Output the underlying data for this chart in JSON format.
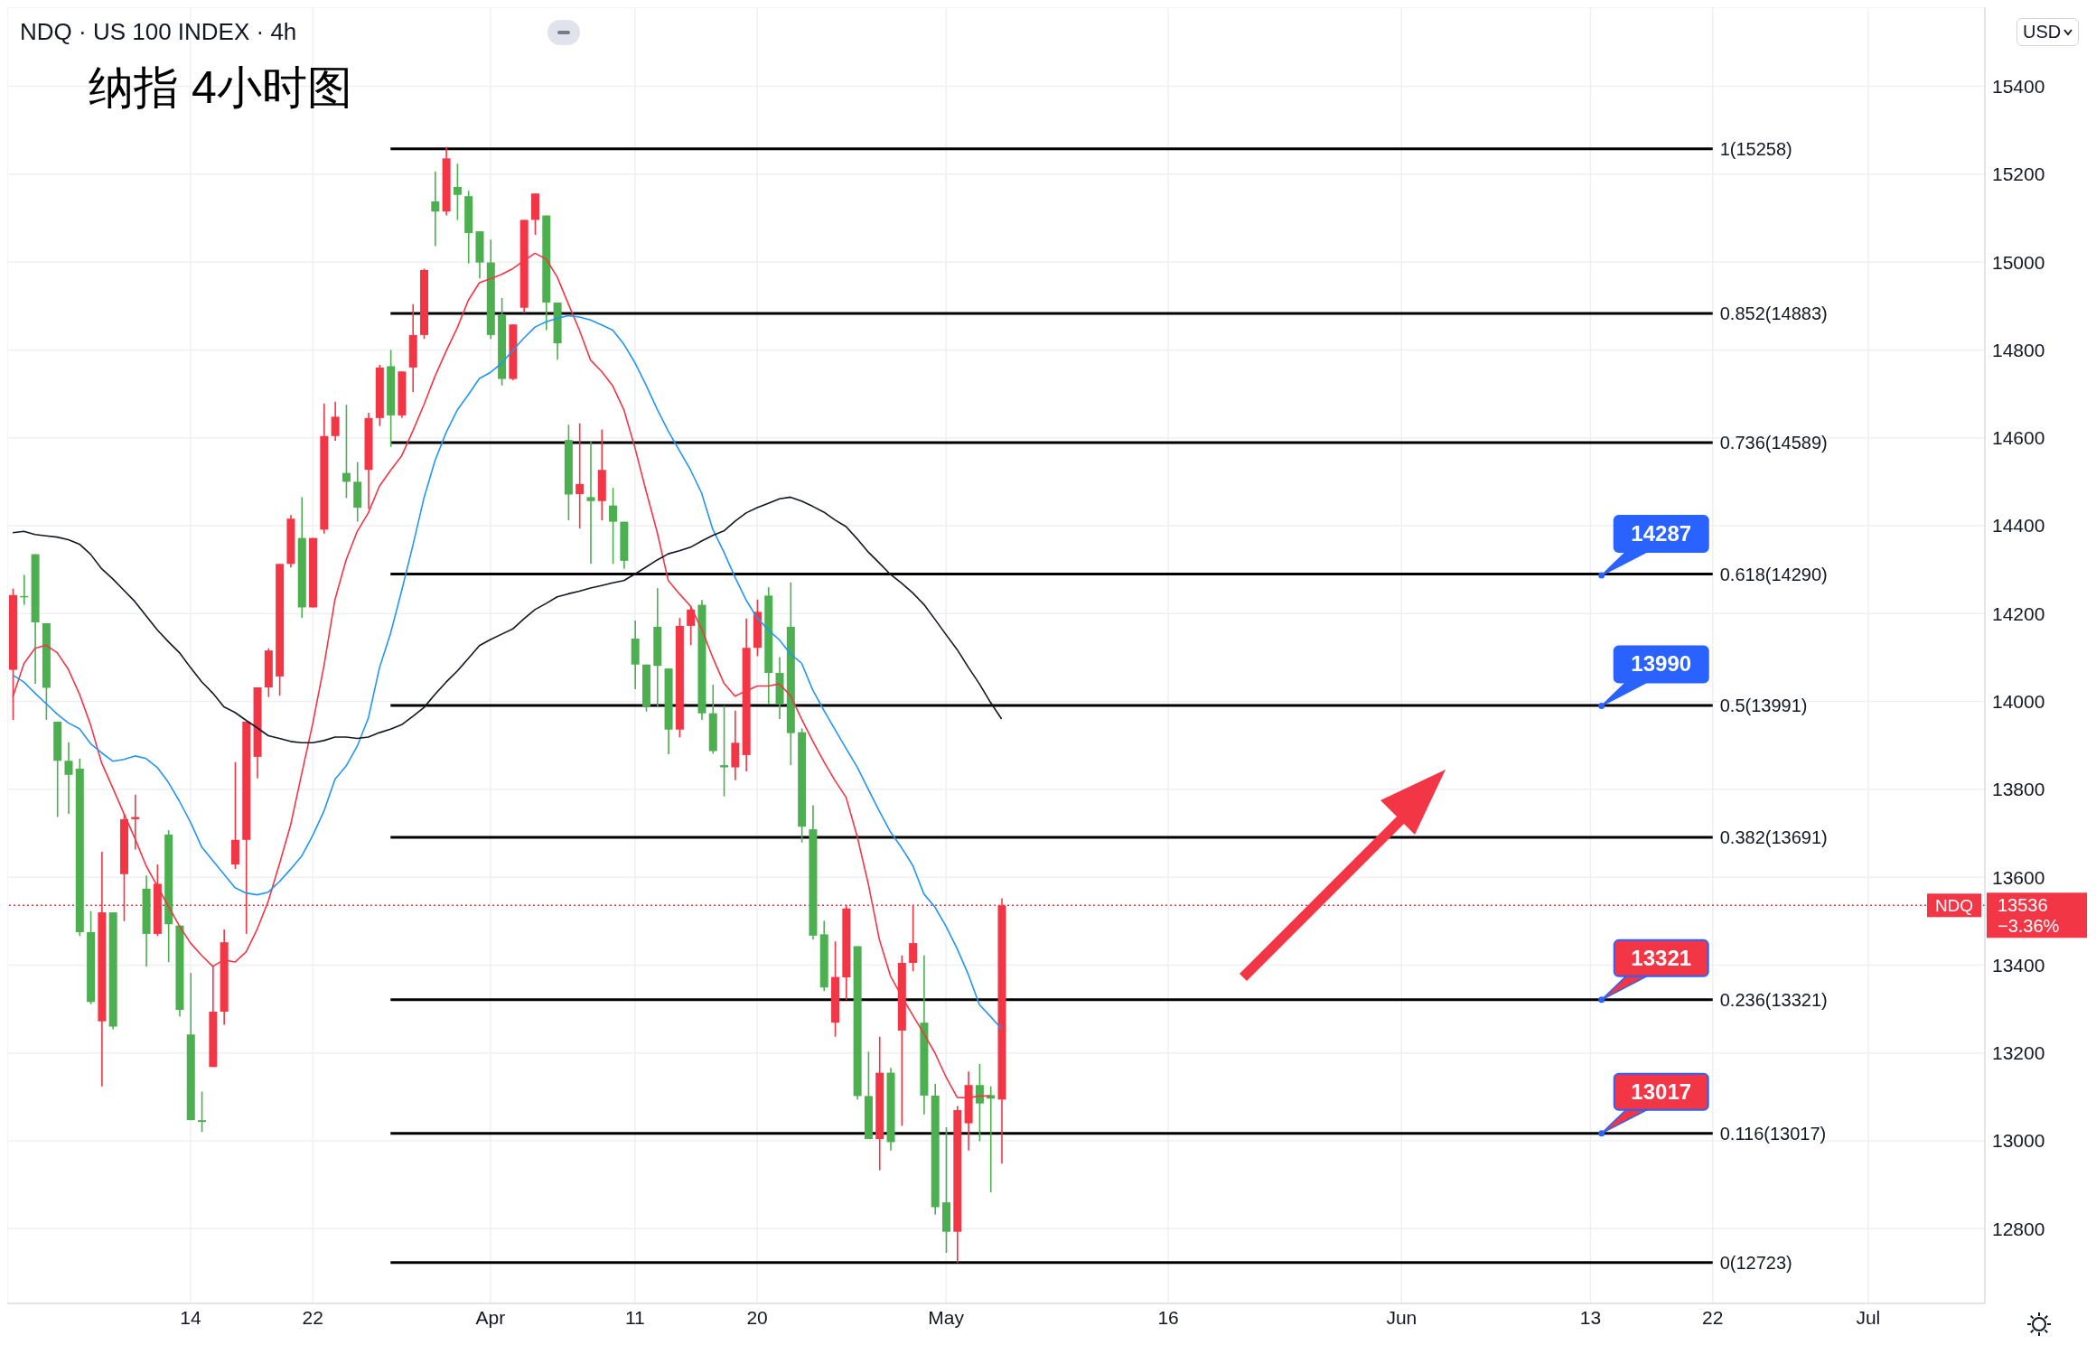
{
  "chart_data": {
    "type": "candlestick",
    "title": "纳指 4小时图",
    "subtitle": "NDQ · US 100 INDEX · 4h",
    "categories": [
      null,
      null,
      null,
      null,
      null,
      null,
      null,
      null,
      null,
      null,
      null,
      null,
      null,
      null,
      null,
      null,
      "14",
      null,
      null,
      null,
      null,
      null,
      null,
      null,
      null,
      null,
      null,
      "22",
      null,
      null,
      null,
      null,
      null,
      null,
      null,
      null,
      null,
      null,
      null,
      null,
      null,
      null,
      null,
      "Apr",
      null,
      null,
      null,
      null,
      null,
      null,
      null,
      null,
      null,
      null,
      null,
      null,
      "11",
      null,
      null,
      null,
      null,
      null,
      null,
      null,
      null,
      null,
      null,
      "20",
      null,
      null,
      null,
      null,
      null,
      null,
      null,
      null,
      null,
      null,
      null,
      null,
      null,
      null,
      null,
      null,
      "May",
      null,
      null,
      null,
      null,
      null,
      null,
      null,
      null,
      null,
      null,
      null,
      null,
      null,
      null,
      null,
      null,
      null,
      null,
      null,
      "16",
      null,
      null,
      null,
      null,
      null,
      null,
      null,
      null,
      null,
      null,
      null,
      null,
      null,
      null,
      null,
      null,
      null,
      null,
      null,
      null,
      "Jun",
      null,
      null,
      null,
      null,
      null,
      null,
      null,
      null,
      null,
      null,
      null,
      null,
      null,
      null,
      null,
      null,
      "13",
      null,
      null,
      null,
      null,
      null,
      null,
      null,
      null,
      null,
      null,
      "22",
      null,
      null,
      null,
      null,
      null,
      null,
      null,
      null,
      null,
      null,
      null,
      null,
      null,
      "Jul",
      null,
      null,
      null,
      null,
      null,
      null,
      null,
      null,
      null,
      null
    ],
    "ohlc": [
      [
        14242,
        14257,
        13958,
        14072
      ],
      [
        14238,
        14288,
        14220,
        14240
      ],
      [
        14180,
        14335,
        14040,
        14335
      ],
      [
        14031,
        14178,
        13958,
        14178
      ],
      [
        13865,
        13954,
        13737,
        13954
      ],
      [
        13833,
        13907,
        13744,
        13865
      ],
      [
        13475,
        13870,
        13466,
        13847
      ],
      [
        13316,
        13523,
        13311,
        13475
      ],
      [
        13520,
        13658,
        13124,
        13272
      ],
      [
        13260,
        13520,
        13254,
        13520
      ],
      [
        13732,
        13744,
        13500,
        13607
      ],
      [
        13737,
        13788,
        13663,
        13732
      ],
      [
        13471,
        13604,
        13397,
        13574
      ],
      [
        13585,
        13629,
        13466,
        13471
      ],
      [
        13493,
        13707,
        13407,
        13697
      ],
      [
        13298,
        13490,
        13283,
        13490
      ],
      [
        13047,
        13382,
        13047,
        13242
      ],
      [
        13043,
        13112,
        13020,
        13047
      ],
      [
        13294,
        13397,
        13168,
        13168
      ],
      [
        13452,
        13481,
        13264,
        13294
      ],
      [
        13685,
        13862,
        13619,
        13629
      ],
      [
        13954,
        13954,
        13471,
        13685
      ],
      [
        14032,
        14032,
        13825,
        13874
      ],
      [
        14116,
        14121,
        14010,
        14032
      ],
      [
        14313,
        14313,
        14013,
        14057
      ],
      [
        14416,
        14424,
        14305,
        14313
      ],
      [
        14214,
        14465,
        14190,
        14372
      ],
      [
        14372,
        14372,
        14214,
        14214
      ],
      [
        14604,
        14678,
        14382,
        14391
      ],
      [
        14648,
        14682,
        14593,
        14604
      ],
      [
        14500,
        14675,
        14463,
        14520
      ],
      [
        14441,
        14545,
        14409,
        14500
      ],
      [
        14645,
        14657,
        14438,
        14527
      ],
      [
        14760,
        14766,
        14627,
        14645
      ],
      [
        14651,
        14800,
        14579,
        14763
      ],
      [
        14751,
        14751,
        14645,
        14651
      ],
      [
        14834,
        14904,
        14704,
        14760
      ],
      [
        14982,
        14985,
        14825,
        14834
      ],
      [
        15115,
        15206,
        15036,
        15138
      ],
      [
        15236,
        15262,
        15106,
        15115
      ],
      [
        15153,
        15224,
        15096,
        15171
      ],
      [
        15066,
        15162,
        14997,
        15150
      ],
      [
        14999,
        15070,
        14963,
        15070
      ],
      [
        14834,
        15051,
        14825,
        14999
      ],
      [
        14734,
        14918,
        14719,
        14881
      ],
      [
        14858,
        14858,
        14731,
        14734
      ],
      [
        15096,
        15096,
        14884,
        14896
      ],
      [
        15156,
        15156,
        15062,
        15096
      ],
      [
        14908,
        15106,
        14845,
        15106
      ],
      [
        14815,
        14908,
        14778,
        14908
      ],
      [
        14471,
        14630,
        14412,
        14595
      ],
      [
        14495,
        14633,
        14394,
        14472
      ],
      [
        14456,
        14592,
        14313,
        14465
      ],
      [
        14527,
        14619,
        14412,
        14456
      ],
      [
        14409,
        14486,
        14313,
        14446
      ],
      [
        14320,
        14409,
        14302,
        14409
      ],
      [
        14084,
        14184,
        14028,
        14143
      ],
      [
        13988,
        14084,
        13977,
        14084
      ],
      [
        14081,
        14258,
        13988,
        14170
      ],
      [
        13936,
        14075,
        13880,
        14075
      ],
      [
        14172,
        14190,
        13918,
        13936
      ],
      [
        14209,
        14217,
        14128,
        14172
      ],
      [
        13973,
        14231,
        13958,
        14220
      ],
      [
        13887,
        14038,
        13881,
        13973
      ],
      [
        13850,
        13990,
        13784,
        13855
      ],
      [
        13906,
        13979,
        13821,
        13850
      ],
      [
        14122,
        14189,
        13841,
        13878
      ],
      [
        14204,
        14232,
        14103,
        14122
      ],
      [
        14065,
        14260,
        13993,
        14241
      ],
      [
        13993,
        14101,
        13960,
        14065
      ],
      [
        13928,
        14271,
        13855,
        14170
      ],
      [
        13715,
        13939,
        13679,
        13930
      ],
      [
        13467,
        13764,
        13458,
        13709
      ],
      [
        13349,
        13501,
        13341,
        13470
      ],
      [
        13373,
        13454,
        13237,
        13269
      ],
      [
        13529,
        13537,
        13321,
        13372
      ],
      [
        13102,
        13443,
        13094,
        13443
      ],
      [
        13004,
        13203,
        13004,
        13102
      ],
      [
        13155,
        13237,
        12933,
        13004
      ],
      [
        12997,
        13166,
        12978,
        13155
      ],
      [
        13405,
        13422,
        13034,
        13251
      ],
      [
        13450,
        13537,
        13386,
        13405
      ],
      [
        13103,
        13422,
        13060,
        13269
      ],
      [
        12849,
        13130,
        12832,
        13103
      ],
      [
        12793,
        13031,
        12745,
        12860
      ],
      [
        13070,
        13079,
        12723,
        12793
      ],
      [
        13127,
        13158,
        12978,
        13040
      ],
      [
        13085,
        13175,
        12999,
        13127
      ],
      [
        13096,
        13124,
        12883,
        13104
      ],
      [
        13536,
        13552,
        12948,
        13094
      ],
      null,
      null,
      null,
      null,
      null,
      null,
      null,
      null,
      null,
      null,
      null,
      null,
      null,
      null,
      null,
      null,
      null,
      null,
      null,
      null,
      null,
      null,
      null,
      null,
      null,
      null,
      null,
      null,
      null,
      null,
      null,
      null,
      null,
      null,
      null,
      null,
      null,
      null,
      null,
      null,
      null,
      null,
      null,
      null,
      null,
      null,
      null,
      null,
      null,
      null,
      null,
      null,
      null,
      null,
      null,
      null,
      null,
      null,
      null,
      null,
      null,
      null,
      null,
      null,
      null,
      null,
      null,
      null,
      null,
      null,
      null,
      null,
      null,
      null,
      null,
      null,
      null,
      null,
      null,
      null,
      null,
      null,
      null,
      null,
      null,
      null,
      null,
      null
    ],
    "colors": [
      "#f23645",
      "#4caf50",
      "#4caf50",
      "#4caf50",
      "#4caf50",
      "#4caf50",
      "#4caf50",
      "#4caf50",
      "#f23645",
      "#4caf50",
      "#f23645",
      "#f23645",
      "#4caf50",
      "#f23645",
      "#4caf50",
      "#4caf50",
      "#4caf50",
      "#4caf50",
      "#f23645",
      "#f23645",
      "#f23645",
      "#f23645",
      "#f23645",
      "#f23645",
      "#f23645",
      "#f23645",
      "#4caf50",
      "#f23645",
      "#f23645",
      "#f23645",
      "#4caf50",
      "#4caf50",
      "#f23645",
      "#f23645",
      "#4caf50",
      "#f23645",
      "#f23645",
      "#f23645",
      "#4caf50",
      "#f23645",
      "#4caf50",
      "#4caf50",
      "#4caf50",
      "#4caf50",
      "#4caf50",
      "#f23645",
      "#f23645",
      "#f23645",
      "#4caf50",
      "#4caf50",
      "#4caf50",
      "#f23645",
      "#4caf50",
      "#f23645",
      "#4caf50",
      "#4caf50",
      "#4caf50",
      "#4caf50",
      "#4caf50",
      "#4caf50",
      "#f23645",
      "#f23645",
      "#4caf50",
      "#4caf50",
      "#4caf50",
      "#f23645",
      "#f23645",
      "#f23645",
      "#4caf50",
      "#4caf50",
      "#4caf50",
      "#4caf50",
      "#4caf50",
      "#4caf50",
      "#f23645",
      "#f23645",
      "#4caf50",
      "#4caf50",
      "#f23645",
      "#4caf50",
      "#f23645",
      "#f23645",
      "#4caf50",
      "#4caf50",
      "#4caf50",
      "#f23645",
      "#f23645",
      "#4caf50",
      "#4caf50",
      "#f23645",
      null,
      null,
      null,
      null,
      null,
      null,
      null,
      null,
      null,
      null,
      null,
      null,
      null,
      null,
      null,
      null,
      null,
      null,
      null,
      null,
      null,
      null,
      null,
      null,
      null,
      null,
      null,
      null,
      null,
      null,
      null,
      null,
      null,
      null,
      null,
      null,
      null,
      null,
      null,
      null,
      null,
      null,
      null,
      null,
      null,
      null,
      null,
      null,
      null,
      null,
      null,
      null,
      null,
      null,
      null,
      null,
      null,
      null,
      null,
      null,
      null,
      null,
      null,
      null,
      null,
      null,
      null,
      null,
      null,
      null,
      null,
      null,
      null,
      null,
      null,
      null,
      null,
      null,
      null,
      null,
      null,
      null,
      null,
      null,
      null,
      null,
      null,
      null
    ],
    "series": [
      {
        "type": "line",
        "color": "#f23645",
        "values": [
          14010,
          14086,
          14121,
          14128,
          14111,
          14073,
          14017,
          13947,
          13860,
          13803,
          13745,
          13688,
          13626,
          13580,
          13534,
          13489,
          13450,
          13422,
          13397,
          13412,
          13407,
          13430,
          13482,
          13546,
          13630,
          13718,
          13835,
          13950,
          14080,
          14232,
          14322,
          14387,
          14429,
          14490,
          14526,
          14559,
          14615,
          14675,
          14740,
          14797,
          14850,
          14913,
          14953,
          14962,
          14972,
          14985,
          15003,
          15020,
          15007,
          14966,
          14905,
          14845,
          14777,
          14751,
          14718,
          14664,
          14577,
          14479,
          14385,
          14275,
          14245,
          14217,
          14165,
          14100,
          14042,
          14012,
          14024,
          14035,
          14035,
          14040,
          14013,
          13960,
          13910,
          13863,
          13820,
          13782,
          13693,
          13585,
          13458,
          13375,
          13329,
          13286,
          13244,
          13200,
          13145,
          13099,
          13098,
          13102,
          13102,
          null,
          null,
          null,
          null,
          null,
          null,
          null,
          null,
          null,
          null,
          null,
          null,
          null,
          null,
          null,
          null,
          null,
          null,
          null,
          null,
          null,
          null,
          null,
          null,
          null,
          null,
          null,
          null,
          null,
          null,
          null,
          null,
          null,
          null,
          null,
          null,
          null,
          null,
          null,
          null,
          null,
          null,
          null,
          null,
          null,
          null,
          null,
          null,
          null,
          null,
          null,
          null,
          null,
          null,
          null,
          null,
          null,
          null,
          null,
          null,
          null,
          null,
          null,
          null,
          null,
          null,
          null,
          null,
          null,
          null,
          null,
          null,
          null,
          null,
          null,
          null,
          null,
          null,
          null,
          null,
          null,
          null,
          null,
          null,
          null,
          null,
          null,
          null,
          null
        ]
      },
      {
        "type": "line",
        "color": "#2196f3",
        "values": [
          14060,
          14044,
          14019,
          13995,
          13971,
          13951,
          13938,
          13904,
          13883,
          13864,
          13868,
          13876,
          13870,
          13850,
          13816,
          13773,
          13725,
          13669,
          13638,
          13607,
          13576,
          13564,
          13560,
          13566,
          13590,
          13618,
          13648,
          13695,
          13750,
          13823,
          13853,
          13898,
          13962,
          14076,
          14155,
          14252,
          14354,
          14462,
          14548,
          14612,
          14663,
          14698,
          14735,
          14749,
          14770,
          14799,
          14827,
          14852,
          14864,
          14872,
          14878,
          14875,
          14868,
          14857,
          14845,
          14813,
          14771,
          14720,
          14665,
          14615,
          14571,
          14527,
          14474,
          14392,
          14340,
          14283,
          14231,
          14190,
          14163,
          14140,
          14108,
          14087,
          14026,
          13980,
          13936,
          13893,
          13851,
          13800,
          13750,
          13703,
          13667,
          13627,
          13562,
          13532,
          13488,
          13437,
          13379,
          13310,
          13283,
          13255,
          null,
          null,
          null,
          null,
          null,
          null,
          null,
          null,
          null,
          null,
          null,
          null,
          null,
          null,
          null,
          null,
          null,
          null,
          null,
          null,
          null,
          null,
          null,
          null,
          null,
          null,
          null,
          null,
          null,
          null,
          null,
          null,
          null,
          null,
          null,
          null,
          null,
          null,
          null,
          null,
          null,
          null,
          null,
          null,
          null,
          null,
          null,
          null,
          null,
          null,
          null,
          null,
          null,
          null,
          null,
          null,
          null,
          null,
          null,
          null,
          null,
          null,
          null,
          null,
          null,
          null,
          null,
          null,
          null,
          null,
          null,
          null,
          null,
          null,
          null,
          null,
          null,
          null,
          null,
          null,
          null,
          null,
          null,
          null,
          null,
          null,
          null,
          null
        ]
      },
      {
        "type": "line",
        "color": "#131722",
        "values": [
          14384,
          14387,
          14380,
          14377,
          14374,
          14368,
          14358,
          14335,
          14302,
          14279,
          14253,
          14227,
          14195,
          14163,
          14136,
          14111,
          14077,
          14045,
          14019,
          13988,
          13975,
          13957,
          13940,
          13922,
          13916,
          13909,
          13906,
          13906,
          13911,
          13919,
          13919,
          13916,
          13919,
          13929,
          13937,
          13947,
          13966,
          13986,
          14016,
          14044,
          14069,
          14098,
          14127,
          14141,
          14153,
          14165,
          14188,
          14209,
          14223,
          14238,
          14245,
          14251,
          14258,
          14264,
          14270,
          14275,
          14290,
          14306,
          14322,
          14336,
          14343,
          14351,
          14365,
          14378,
          14388,
          14410,
          14429,
          14441,
          14451,
          14461,
          14465,
          14456,
          14444,
          14431,
          14413,
          14398,
          14370,
          14340,
          14315,
          14289,
          14269,
          14247,
          14221,
          14187,
          14152,
          14118,
          14078,
          14040,
          13998,
          13960,
          null,
          null,
          null,
          null,
          null,
          null,
          null,
          null,
          null,
          null,
          null,
          null,
          null,
          null,
          null,
          null,
          null,
          null,
          null,
          null,
          null,
          null,
          null,
          null,
          null,
          null,
          null,
          null,
          null,
          null,
          null,
          null,
          null,
          null,
          null,
          null,
          null,
          null,
          null,
          null,
          null,
          null,
          null,
          null,
          null,
          null,
          null,
          null,
          null,
          null,
          null,
          null,
          null,
          null,
          null,
          null,
          null,
          null,
          null,
          null,
          null,
          null,
          null,
          null,
          null,
          null,
          null,
          null,
          null,
          null,
          null,
          null,
          null,
          null,
          null,
          null,
          null,
          null,
          null,
          null,
          null,
          null,
          null,
          null,
          null,
          null,
          null,
          null
        ]
      }
    ],
    "ylim": [
      12630,
      15580
    ],
    "yticks": [
      12800,
      13000,
      13200,
      13400,
      13600,
      13800,
      14000,
      14200,
      14400,
      14600,
      14800,
      15000,
      15200,
      15400
    ],
    "grid": true,
    "ref_lines": [
      {
        "axis": "y",
        "value": 15258,
        "label": "1(15258)",
        "color": "#000000"
      },
      {
        "axis": "y",
        "value": 14883,
        "label": "0.852(14883)",
        "color": "#000000"
      },
      {
        "axis": "y",
        "value": 14589,
        "label": "0.736(14589)",
        "color": "#000000"
      },
      {
        "axis": "y",
        "value": 14290,
        "label": "0.618(14290)",
        "color": "#000000"
      },
      {
        "axis": "y",
        "value": 13991,
        "label": "0.5(13991)",
        "color": "#000000"
      },
      {
        "axis": "y",
        "value": 13691,
        "label": "0.382(13691)",
        "color": "#000000"
      },
      {
        "axis": "y",
        "value": 13321,
        "label": "0.236(13321)",
        "color": "#000000"
      },
      {
        "axis": "y",
        "value": 13017,
        "label": "0.116(13017)",
        "color": "#000000"
      },
      {
        "axis": "y",
        "value": 12723,
        "label": "0(12723)",
        "color": "#000000"
      },
      {
        "axis": "y",
        "value": 13536,
        "label": "NDQ",
        "color": "#f23645",
        "line_style": "dotted"
      }
    ],
    "annotations": [
      {
        "text": "14287",
        "y": 14287
      },
      {
        "text": "13990",
        "y": 13990
      },
      {
        "text": "13321",
        "y": 13321
      },
      {
        "text": "13017",
        "y": 13017
      },
      "13536",
      "−3.36%",
      "USD"
    ]
  }
}
